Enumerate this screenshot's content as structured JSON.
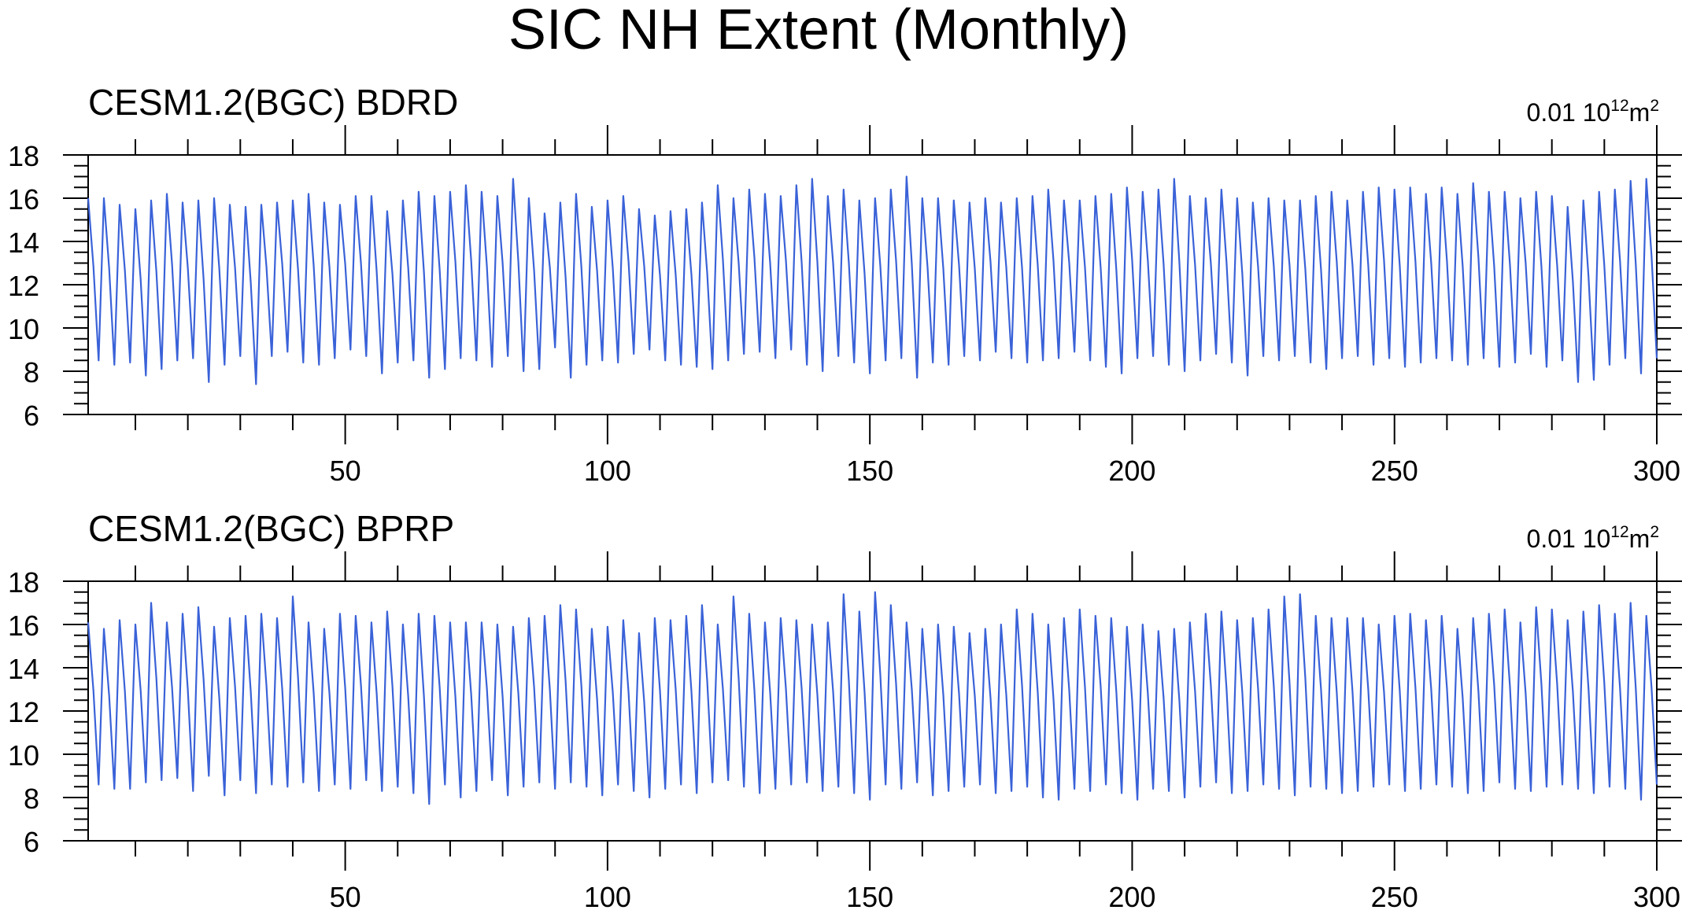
{
  "figure_title": "SIC NH Extent (Monthly)",
  "units": {
    "prefix": "0.01 10",
    "exponent": "12",
    "unit": "m",
    "unit_exponent": "2"
  },
  "chart_data": [
    {
      "type": "line",
      "title": "CESM1.2(BGC) BDRD",
      "xlabel": "",
      "ylabel": "",
      "xlim": [
        1,
        300
      ],
      "ylim": [
        6,
        18
      ],
      "x_ticks": [
        50,
        100,
        150,
        200,
        250,
        300
      ],
      "y_ticks": [
        6,
        8,
        10,
        12,
        14,
        16,
        18
      ],
      "line_color": "#3a62d8",
      "series": [
        {
          "name": "BDRD",
          "annual_max": [
            16.0,
            16.0,
            15.7,
            15.5,
            15.9,
            16.2,
            15.8,
            15.9,
            16.0,
            15.7,
            15.6,
            15.7,
            15.8,
            15.9,
            16.2,
            15.8,
            15.7,
            16.1,
            16.1,
            15.4,
            15.9,
            16.3,
            16.1,
            16.3,
            16.6,
            16.3,
            16.1,
            16.9,
            16.0,
            15.3,
            15.8,
            16.2,
            15.6,
            15.9,
            16.1,
            15.5,
            15.2,
            15.4,
            15.5,
            15.8,
            16.6,
            16.0,
            16.4,
            16.2,
            16.1,
            16.6,
            16.9,
            16.1,
            16.4,
            15.9,
            16.0,
            16.4,
            17.0,
            16.0,
            16.0,
            15.9,
            15.8,
            16.0,
            15.8,
            16.0,
            16.1,
            16.4,
            15.9,
            15.9,
            16.1,
            16.2,
            16.5,
            16.3,
            16.4,
            16.9,
            16.1,
            16.0,
            16.4,
            16.0,
            15.8,
            16.0,
            15.9,
            15.9,
            16.1,
            16.3,
            15.9,
            16.3,
            16.5,
            16.4,
            16.5,
            16.2,
            16.5,
            16.2,
            16.7,
            16.3,
            16.3,
            16.0,
            16.3,
            16.1,
            15.6,
            15.9,
            16.3,
            16.4,
            16.8,
            16.9
          ]
        }
      ],
      "annual_min": [
        8.5,
        8.3,
        8.4,
        7.8,
        8.1,
        8.5,
        8.6,
        7.5,
        8.3,
        8.7,
        7.4,
        8.7,
        8.9,
        8.4,
        8.3,
        8.6,
        9.0,
        8.7,
        7.9,
        8.4,
        8.5,
        7.7,
        8.1,
        8.6,
        8.5,
        8.2,
        8.7,
        8.0,
        8.1,
        9.1,
        7.7,
        8.3,
        8.5,
        8.4,
        8.8,
        9.0,
        8.5,
        8.3,
        8.2,
        8.1,
        8.5,
        8.8,
        8.9,
        8.6,
        9.0,
        8.3,
        8.0,
        8.7,
        8.4,
        7.9,
        8.5,
        8.6,
        7.7,
        8.4,
        8.3,
        8.7,
        8.5,
        8.9,
        8.6,
        8.4,
        8.5,
        8.6,
        8.9,
        8.5,
        8.2,
        7.9,
        8.6,
        8.7,
        8.3,
        8.0,
        8.5,
        8.8,
        8.4,
        7.8,
        8.7,
        8.5,
        8.7,
        8.4,
        8.1,
        8.6,
        8.7,
        8.3,
        8.6,
        8.2,
        8.4,
        8.6,
        8.5,
        8.3,
        8.6,
        8.2,
        8.4,
        8.8,
        8.2,
        8.5,
        7.5,
        7.6,
        8.3,
        8.6,
        7.9,
        8.6
      ]
    },
    {
      "type": "line",
      "title": "CESM1.2(BGC) BPRP",
      "xlabel": "",
      "ylabel": "",
      "xlim": [
        1,
        300
      ],
      "ylim": [
        6,
        18
      ],
      "x_ticks": [
        50,
        100,
        150,
        200,
        250,
        300
      ],
      "y_ticks": [
        6,
        8,
        10,
        12,
        14,
        16,
        18
      ],
      "line_color": "#3a62d8",
      "series": [
        {
          "name": "BPRP",
          "annual_max": [
            16.1,
            15.8,
            16.2,
            16.0,
            17.0,
            16.1,
            16.5,
            16.8,
            15.9,
            16.3,
            16.4,
            16.5,
            16.3,
            17.3,
            16.1,
            15.8,
            16.5,
            16.4,
            16.1,
            16.6,
            16.0,
            16.5,
            16.4,
            16.1,
            16.1,
            16.1,
            16.0,
            15.9,
            16.3,
            16.4,
            16.9,
            16.7,
            15.8,
            15.9,
            16.2,
            15.6,
            16.3,
            16.2,
            16.4,
            16.9,
            16.0,
            17.3,
            16.5,
            16.1,
            16.3,
            16.2,
            16.0,
            16.1,
            17.4,
            16.6,
            17.5,
            16.9,
            16.1,
            15.8,
            16.0,
            15.9,
            15.6,
            15.8,
            16.0,
            16.7,
            16.5,
            16.0,
            16.3,
            16.7,
            16.4,
            16.3,
            15.9,
            16.0,
            15.7,
            15.8,
            16.1,
            16.5,
            16.6,
            16.2,
            16.3,
            16.7,
            17.3,
            17.4,
            16.4,
            16.3,
            16.3,
            16.3,
            16.0,
            16.4,
            16.5,
            16.2,
            16.4,
            15.8,
            16.3,
            16.5,
            16.7,
            16.1,
            16.8,
            16.7,
            16.2,
            16.6,
            16.9,
            16.5,
            17.0,
            16.4
          ]
        }
      ],
      "annual_min": [
        8.6,
        8.4,
        8.4,
        8.7,
        8.8,
        8.9,
        8.3,
        9.0,
        8.1,
        8.8,
        8.2,
        8.6,
        8.5,
        8.7,
        8.3,
        8.6,
        8.4,
        8.8,
        8.3,
        8.5,
        8.2,
        7.7,
        8.6,
        8.0,
        8.3,
        8.8,
        8.1,
        8.5,
        8.7,
        8.4,
        8.7,
        8.5,
        8.1,
        8.6,
        8.3,
        8.0,
        8.4,
        8.6,
        8.2,
        8.7,
        8.8,
        8.5,
        8.2,
        8.4,
        8.6,
        8.7,
        8.3,
        8.5,
        8.2,
        7.9,
        8.6,
        8.4,
        8.7,
        8.1,
        8.3,
        8.5,
        8.6,
        8.2,
        8.3,
        8.5,
        8.0,
        7.9,
        8.4,
        8.3,
        8.6,
        8.2,
        7.9,
        8.4,
        8.3,
        8.0,
        8.5,
        8.7,
        8.2,
        8.3,
        8.6,
        8.4,
        8.1,
        8.5,
        8.4,
        8.2,
        8.3,
        8.5,
        8.6,
        8.3,
        8.4,
        8.6,
        8.5,
        8.2,
        8.3,
        8.7,
        8.4,
        8.3,
        8.5,
        8.6,
        8.4,
        8.2,
        8.5,
        8.4,
        7.9,
        8.6
      ]
    }
  ]
}
